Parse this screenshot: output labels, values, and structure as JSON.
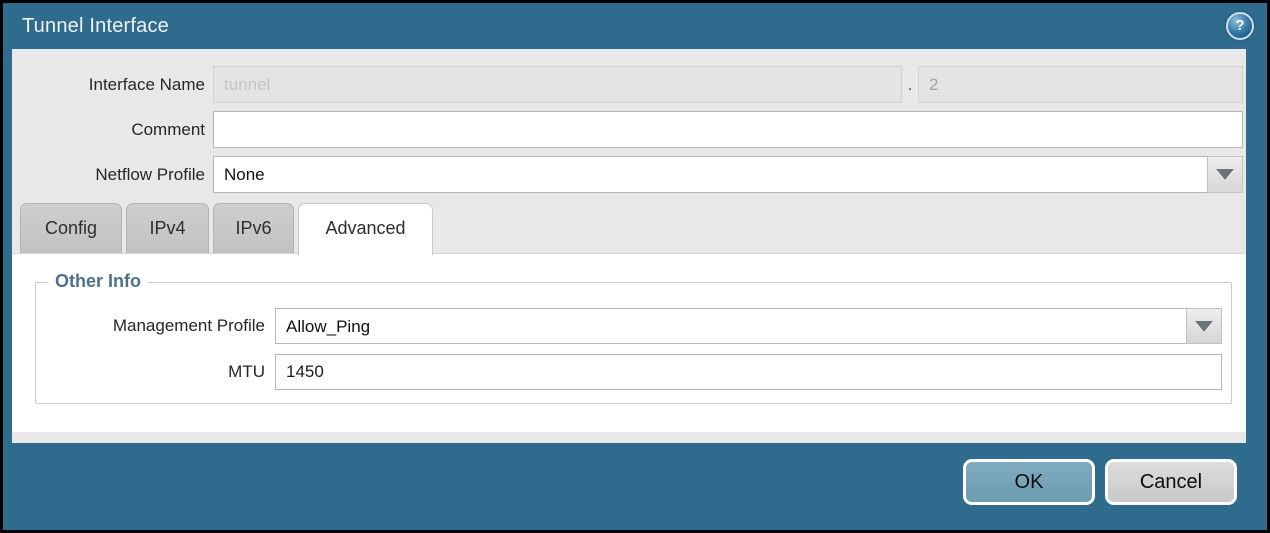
{
  "dialog": {
    "title": "Tunnel Interface",
    "help_glyph": "?"
  },
  "form": {
    "interface_name": {
      "label": "Interface Name",
      "value_placeholder": "tunnel",
      "separator": ".",
      "suffix_value": "2"
    },
    "comment": {
      "label": "Comment",
      "value": ""
    },
    "netflow_profile": {
      "label": "Netflow Profile",
      "value": "None"
    }
  },
  "tabs": [
    {
      "label": "Config"
    },
    {
      "label": "IPv4"
    },
    {
      "label": "IPv6"
    },
    {
      "label": "Advanced"
    }
  ],
  "advanced_tab": {
    "section_title": "Other Info",
    "management_profile": {
      "label": "Management Profile",
      "value": "Allow_Ping"
    },
    "mtu": {
      "label": "MTU",
      "value": "1450"
    }
  },
  "footer": {
    "ok_label": "OK",
    "cancel_label": "Cancel"
  },
  "colors": {
    "frame_teal": "#2e6b8c",
    "form_gray": "#e8e8e8",
    "ok_button": "#74a3b8",
    "legend_blue": "#4f718c"
  }
}
